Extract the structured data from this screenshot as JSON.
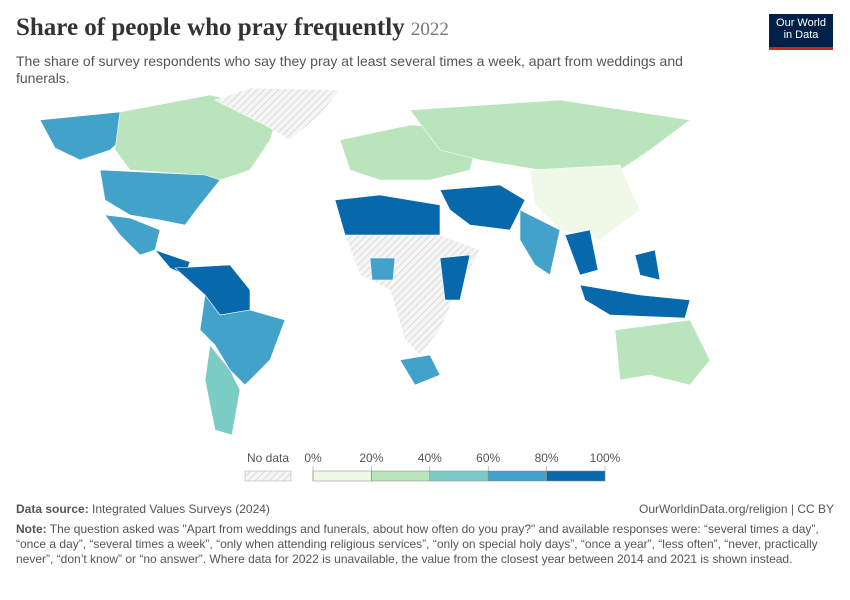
{
  "header": {
    "title": "Share of people who pray frequently",
    "year": "2022",
    "subtitle": "The share of survey respondents who say they pray at least several times a week, apart from weddings and funerals.",
    "logo": [
      "Our World",
      "in Data"
    ]
  },
  "legend": {
    "no_data": "No data",
    "ticks": [
      {
        "value": 0,
        "label": "0%"
      },
      {
        "value": 20,
        "label": "20%"
      },
      {
        "value": 40,
        "label": "40%"
      },
      {
        "value": 60,
        "label": "60%"
      },
      {
        "value": 80,
        "label": "80%"
      },
      {
        "value": 100,
        "label": "100%"
      }
    ],
    "colors": [
      "#f0f9e8",
      "#bae4bc",
      "#7bccc4",
      "#43a2ca",
      "#0868ac"
    ]
  },
  "footer": {
    "source_label": "Data source:",
    "source": "Integrated Values Surveys (2024)",
    "url": "OurWorldinData.org/religion | CC BY",
    "note_label": "Note:",
    "note": "The question asked was \"Apart from weddings and funerals, about how often do you pray?\" and available responses were: “several times a day”, “once a day”, “several times a week”, “only when attending religious services”, “only on special holy days”, “once a year”, “less often”, “never, practically never”, “don’t know” or “no answer”. Where data for 2022 is unavailable, the value from the closest year between 2014 and 2021 is shown instead."
  }
}
